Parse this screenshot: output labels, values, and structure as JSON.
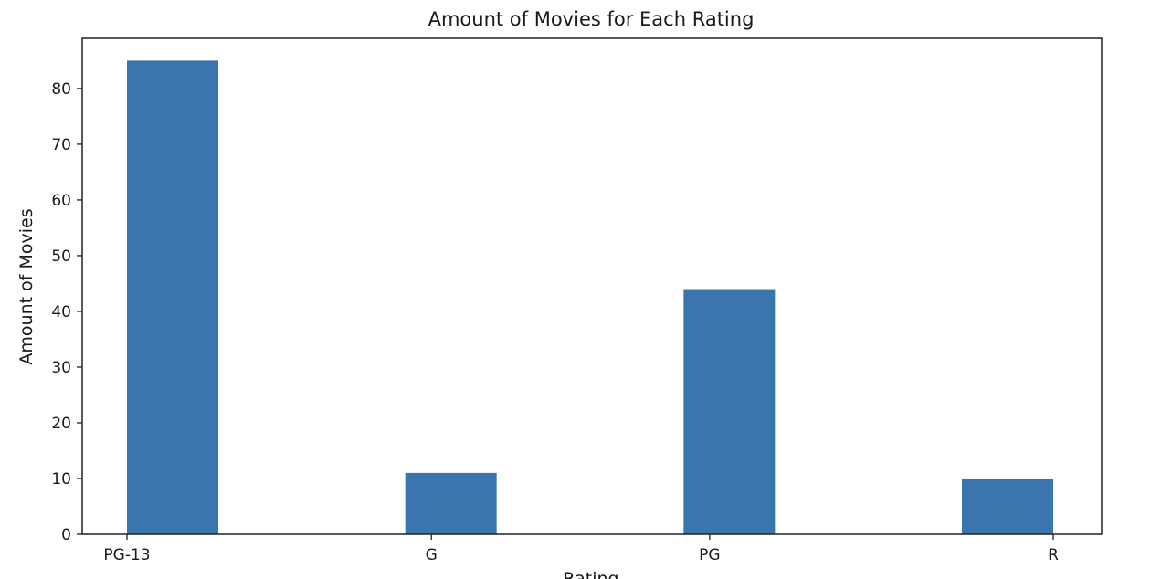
{
  "chart_data": {
    "type": "bar",
    "title": "Amount of Movies for Each Rating",
    "xlabel": "Rating",
    "ylabel": "Amount of Movies",
    "categories": [
      "PG-13",
      "G",
      "PG",
      "R"
    ],
    "values": [
      85,
      11,
      44,
      10
    ],
    "ylim": [
      0,
      89
    ],
    "yticks": [
      0,
      10,
      20,
      30,
      40,
      50,
      60,
      70,
      80
    ],
    "grid": false,
    "bar_color": "#3a75ad"
  }
}
